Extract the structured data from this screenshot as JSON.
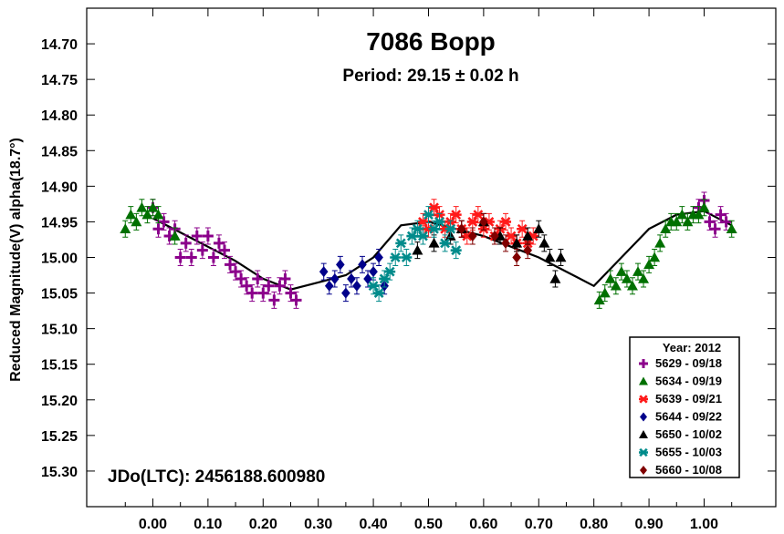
{
  "chart_data": {
    "type": "scatter",
    "title": "7086 Bopp",
    "subtitle": "Period: 29.15 ± 0.02 h",
    "xlabel": "",
    "ylabel": "Reduced Magnitude(V) alpha(18.7°)",
    "annotation": "JDo(LTC): 2456188.600980",
    "xlim": [
      -0.12,
      1.13
    ],
    "ylim": [
      14.65,
      15.35
    ],
    "y_inverted": true,
    "x_ticks": [
      "0.00",
      "0.10",
      "0.20",
      "0.30",
      "0.40",
      "0.50",
      "0.60",
      "0.70",
      "0.80",
      "0.90",
      "1.00"
    ],
    "y_ticks": [
      "14.70",
      "14.75",
      "14.80",
      "14.85",
      "14.90",
      "14.95",
      "15.00",
      "15.05",
      "15.10",
      "15.15",
      "15.20",
      "15.25",
      "15.30"
    ],
    "grid": false,
    "legend": {
      "title": "Year: 2012",
      "placement": "bottom-right"
    },
    "fit_curve": {
      "x": [
        0.0,
        0.05,
        0.1,
        0.15,
        0.2,
        0.25,
        0.3,
        0.35,
        0.4,
        0.45,
        0.5,
        0.55,
        0.6,
        0.65,
        0.7,
        0.75,
        0.8,
        0.85,
        0.9,
        0.95,
        1.0,
        1.05
      ],
      "y": [
        14.945,
        14.965,
        14.985,
        15.005,
        15.03,
        15.045,
        15.035,
        15.025,
        15.0,
        14.955,
        14.95,
        14.96,
        14.97,
        14.985,
        15.0,
        15.02,
        15.04,
        15.0,
        14.96,
        14.94,
        14.935,
        14.955
      ]
    },
    "series": [
      {
        "name": "5629 - 09/18",
        "color": "#8B008B",
        "marker": "plus",
        "x": [
          0.0,
          0.01,
          0.02,
          0.03,
          0.04,
          0.05,
          0.06,
          0.07,
          0.08,
          0.09,
          0.1,
          0.11,
          0.12,
          0.13,
          0.14,
          0.15,
          0.16,
          0.17,
          0.18,
          0.19,
          0.2,
          0.21,
          0.22,
          0.23,
          0.24,
          0.25,
          0.26,
          0.99,
          1.0,
          1.01,
          1.02,
          1.03,
          1.04
        ],
        "y": [
          14.93,
          14.96,
          14.95,
          14.97,
          14.96,
          15.0,
          14.98,
          15.0,
          14.97,
          14.99,
          14.97,
          15.0,
          14.98,
          14.99,
          15.01,
          15.02,
          15.03,
          15.04,
          15.05,
          15.03,
          15.05,
          15.04,
          15.06,
          15.04,
          15.03,
          15.05,
          15.06,
          14.93,
          14.92,
          14.95,
          14.96,
          14.94,
          14.95
        ]
      },
      {
        "name": "5634 - 09/19",
        "color": "#007000",
        "marker": "triangle",
        "x": [
          -0.05,
          -0.04,
          -0.03,
          -0.02,
          -0.01,
          0.0,
          0.01,
          0.04,
          0.81,
          0.82,
          0.83,
          0.84,
          0.85,
          0.86,
          0.87,
          0.88,
          0.89,
          0.9,
          0.91,
          0.92,
          0.93,
          0.94,
          0.95,
          0.96,
          0.97,
          0.98,
          0.99,
          1.0,
          1.05
        ],
        "y": [
          14.96,
          14.94,
          14.95,
          14.93,
          14.94,
          14.93,
          14.94,
          14.97,
          15.06,
          15.05,
          15.03,
          15.04,
          15.02,
          15.03,
          15.04,
          15.02,
          15.03,
          15.01,
          15.0,
          14.98,
          14.96,
          14.95,
          14.95,
          14.94,
          14.95,
          14.94,
          14.94,
          14.93,
          14.96
        ]
      },
      {
        "name": "5639 - 09/21",
        "color": "#FF1A1A",
        "marker": "asterisk",
        "x": [
          0.49,
          0.5,
          0.51,
          0.52,
          0.53,
          0.54,
          0.55,
          0.56,
          0.57,
          0.58,
          0.59,
          0.6,
          0.61,
          0.62,
          0.63,
          0.64,
          0.65,
          0.66,
          0.67,
          0.68,
          0.69
        ],
        "y": [
          14.95,
          14.96,
          14.93,
          14.94,
          14.96,
          14.95,
          14.94,
          14.96,
          14.97,
          14.95,
          14.94,
          14.96,
          14.95,
          14.97,
          14.96,
          14.95,
          14.97,
          14.98,
          14.96,
          14.98,
          14.97
        ]
      },
      {
        "name": "5644 - 09/22",
        "color": "#00008B",
        "marker": "diamond",
        "x": [
          0.31,
          0.32,
          0.33,
          0.34,
          0.35,
          0.36,
          0.37,
          0.38,
          0.39,
          0.4,
          0.41,
          0.42
        ],
        "y": [
          15.02,
          15.04,
          15.03,
          15.01,
          15.05,
          15.03,
          15.04,
          15.01,
          15.03,
          15.02,
          15.0,
          15.04
        ]
      },
      {
        "name": "5650 - 10/02",
        "color": "#000000",
        "marker": "triangle",
        "x": [
          0.48,
          0.51,
          0.54,
          0.56,
          0.6,
          0.63,
          0.66,
          0.68,
          0.7,
          0.71,
          0.72,
          0.73,
          0.74
        ],
        "y": [
          14.99,
          14.98,
          14.97,
          14.96,
          14.95,
          14.97,
          14.98,
          14.97,
          14.96,
          14.98,
          15.0,
          15.03,
          15.0
        ]
      },
      {
        "name": "5655 - 10/03",
        "color": "#008B8B",
        "marker": "asterisk",
        "x": [
          0.4,
          0.41,
          0.42,
          0.43,
          0.44,
          0.45,
          0.46,
          0.47,
          0.48,
          0.49,
          0.5,
          0.51,
          0.52,
          0.53,
          0.54,
          0.55
        ],
        "y": [
          15.04,
          15.05,
          15.03,
          15.02,
          15.0,
          14.98,
          15.0,
          14.97,
          14.96,
          14.97,
          14.94,
          14.96,
          14.95,
          14.98,
          14.96,
          14.99
        ]
      },
      {
        "name": "5660 - 10/08",
        "color": "#800000",
        "marker": "diamond",
        "x": [
          0.56,
          0.58,
          0.6,
          0.62,
          0.64,
          0.66,
          0.68
        ],
        "y": [
          14.96,
          14.97,
          14.95,
          14.97,
          14.98,
          15.0,
          14.99
        ]
      }
    ]
  }
}
